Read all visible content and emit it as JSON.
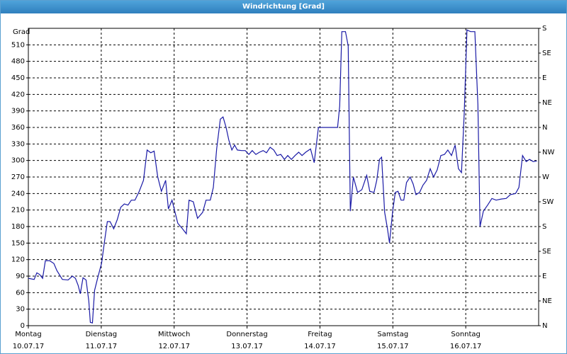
{
  "chart_data": {
    "type": "line",
    "title": "Windrichtung [Grad]",
    "y_label": "Grad",
    "color": "#1a1aa6",
    "grid": true,
    "xlim": [
      0,
      168
    ],
    "xticks": [
      {
        "value": 0,
        "label": "Montag",
        "sublabel": "10.07.17"
      },
      {
        "value": 24,
        "label": "Dienstag",
        "sublabel": "11.07.17"
      },
      {
        "value": 48,
        "label": "Mittwoch",
        "sublabel": "12.07.17"
      },
      {
        "value": 72,
        "label": "Donnerstag",
        "sublabel": "13.07.17"
      },
      {
        "value": 96,
        "label": "Freitag",
        "sublabel": "14.07.17"
      },
      {
        "value": 120,
        "label": "Samstag",
        "sublabel": "15.07.17"
      },
      {
        "value": 144,
        "label": "Sonntag",
        "sublabel": "16.07.17"
      }
    ],
    "ylim": [
      0,
      540
    ],
    "yticks": [
      0,
      30,
      60,
      90,
      120,
      150,
      180,
      210,
      240,
      270,
      300,
      330,
      360,
      390,
      420,
      450,
      480,
      510
    ],
    "y2lim": [
      0,
      540
    ],
    "y2ticks": [
      {
        "value": 0,
        "label": "N"
      },
      {
        "value": 45,
        "label": "NE"
      },
      {
        "value": 90,
        "label": "E"
      },
      {
        "value": 135,
        "label": "SE"
      },
      {
        "value": 180,
        "label": "S"
      },
      {
        "value": 225,
        "label": "SW"
      },
      {
        "value": 270,
        "label": "W"
      },
      {
        "value": 315,
        "label": "NW"
      },
      {
        "value": 360,
        "label": "N"
      },
      {
        "value": 405,
        "label": "NE"
      },
      {
        "value": 450,
        "label": "E"
      },
      {
        "value": 495,
        "label": "SE"
      },
      {
        "value": 540,
        "label": "S"
      }
    ],
    "x": [
      0,
      1.9,
      2.8,
      3.7,
      4.7,
      5.6,
      7,
      8.4,
      9.4,
      11.2,
      13.1,
      14.5,
      15.5,
      16.4,
      17.1,
      18,
      19,
      19.9,
      20.4,
      21.1,
      21.8,
      22.7,
      23.7,
      24.1,
      25.1,
      26,
      26.9,
      28.1,
      29.3,
      30.4,
      31.6,
      32.8,
      33.9,
      35.1,
      36.5,
      37.9,
      39.1,
      40.3,
      41.4,
      42.6,
      43.8,
      45.2,
      46.1,
      47.3,
      48.2,
      49.2,
      50.6,
      52,
      52.9,
      54.3,
      55.7,
      57.4,
      58.5,
      59.9,
      60.9,
      62,
      63.2,
      64.1,
      65.1,
      66,
      67,
      67.9,
      68.8,
      70.2,
      71.4,
      72.6,
      73.7,
      74.9,
      76.1,
      77.3,
      78.4,
      79.6,
      80.8,
      81.9,
      83.1,
      84.3,
      85.4,
      86.6,
      87.8,
      89,
      90.1,
      91.3,
      92.9,
      94.1,
      95.5,
      97.2,
      99.5,
      101.8,
      102.5,
      103.2,
      104.4,
      105.3,
      106,
      107,
      108.4,
      109.8,
      111.4,
      112.4,
      113.8,
      114.7,
      115.6,
      116.3,
      117.3,
      118.2,
      118.9,
      119.9,
      120.8,
      121.7,
      122.7,
      123.6,
      124.5,
      125.7,
      126.7,
      127.6,
      128.8,
      129.9,
      131.1,
      132.3,
      133.4,
      134.6,
      135.8,
      137,
      138.1,
      139.3,
      140.5,
      141.6,
      142.6,
      143.5,
      144.4,
      145.6,
      147,
      148,
      148.7,
      149.8,
      151.2,
      152.6,
      154,
      155.7,
      157.3,
      158.7,
      160.4,
      161.5,
      162.7,
      163.9,
      165,
      166.2,
      167.4
    ],
    "values": [
      86,
      84,
      96,
      93,
      86,
      118,
      118,
      113,
      100,
      84,
      83,
      90,
      86,
      73,
      58,
      87,
      83,
      45,
      6,
      5,
      64,
      84,
      105,
      113,
      154,
      189,
      189,
      176,
      193,
      215,
      221,
      219,
      228,
      228,
      244,
      264,
      319,
      314,
      317,
      270,
      244,
      264,
      212,
      228,
      208,
      186,
      177,
      167,
      228,
      225,
      195,
      206,
      228,
      228,
      251,
      321,
      375,
      379,
      360,
      337,
      319,
      328,
      319,
      318,
      318,
      311,
      318,
      311,
      315,
      318,
      314,
      324,
      319,
      309,
      311,
      302,
      309,
      302,
      309,
      315,
      309,
      315,
      321,
      296,
      360,
      360,
      360,
      360,
      399,
      534,
      534,
      508,
      208,
      270,
      242,
      247,
      273,
      244,
      242,
      264,
      302,
      306,
      206,
      177,
      150,
      206,
      242,
      244,
      228,
      228,
      260,
      270,
      257,
      238,
      242,
      255,
      264,
      285,
      270,
      283,
      309,
      311,
      319,
      309,
      328,
      285,
      278,
      386,
      537,
      534,
      534,
      401,
      180,
      208,
      219,
      231,
      228,
      230,
      231,
      238,
      240,
      251,
      309,
      298,
      302,
      298,
      299
    ]
  }
}
